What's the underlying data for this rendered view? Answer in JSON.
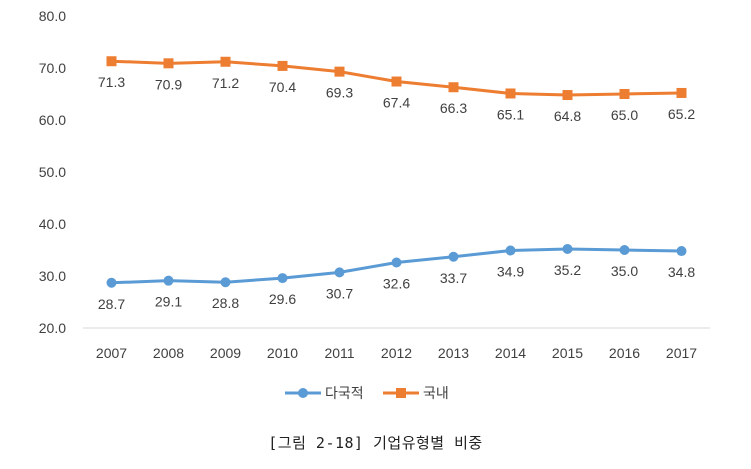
{
  "chart_data": {
    "type": "line",
    "title": "",
    "xlabel": "",
    "ylabel": "",
    "categories": [
      "2007",
      "2008",
      "2009",
      "2010",
      "2011",
      "2012",
      "2013",
      "2014",
      "2015",
      "2016",
      "2017"
    ],
    "ylim": [
      20,
      80
    ],
    "yticks": [
      "20.0",
      "30.0",
      "40.0",
      "50.0",
      "60.0",
      "70.0",
      "80.0"
    ],
    "grid": false,
    "legend": "bottom",
    "series": [
      {
        "name": "다국적",
        "color": "#5B9BD5",
        "marker": "circle",
        "values": [
          28.7,
          29.1,
          28.8,
          29.6,
          30.7,
          32.6,
          33.7,
          34.9,
          35.2,
          35.0,
          34.8
        ],
        "labels": [
          "28.7",
          "29.1",
          "28.8",
          "29.6",
          "30.7",
          "32.6",
          "33.7",
          "34.9",
          "35.2",
          "35.0",
          "34.8"
        ]
      },
      {
        "name": "국내",
        "color": "#ED7D31",
        "marker": "square",
        "values": [
          71.3,
          70.9,
          71.2,
          70.4,
          69.3,
          67.4,
          66.3,
          65.1,
          64.8,
          65.0,
          65.2
        ],
        "labels": [
          "71.3",
          "70.9",
          "71.2",
          "70.4",
          "69.3",
          "67.4",
          "66.3",
          "65.1",
          "64.8",
          "65.0",
          "65.2"
        ]
      }
    ]
  },
  "caption": "[그림 2-18] 기업유형별 비중"
}
